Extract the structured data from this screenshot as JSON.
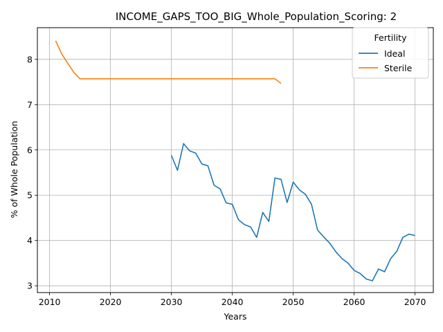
{
  "chart_data": {
    "type": "line",
    "title": "INCOME_GAPS_TOO_BIG_Whole_Population_Scoring: 2",
    "xlabel": "Years",
    "ylabel": "% of Whole Population",
    "xlim": [
      2008,
      2073
    ],
    "ylim": [
      2.85,
      8.7
    ],
    "xticks": [
      2010,
      2020,
      2030,
      2040,
      2050,
      2060,
      2070
    ],
    "yticks": [
      3,
      4,
      5,
      6,
      7,
      8
    ],
    "grid": true,
    "legend": {
      "title": "Fertility",
      "placement": "top-right"
    },
    "series": [
      {
        "name": "Ideal",
        "color": "#1f77b4",
        "x": [
          2030,
          2031,
          2032,
          2033,
          2034,
          2035,
          2036,
          2037,
          2038,
          2039,
          2040,
          2041,
          2042,
          2043,
          2044,
          2045,
          2046,
          2047,
          2048,
          2049,
          2050,
          2051,
          2052,
          2053,
          2054,
          2055,
          2056,
          2057,
          2058,
          2059,
          2060,
          2061,
          2062,
          2063,
          2064,
          2065,
          2066,
          2067,
          2068,
          2069,
          2070
        ],
        "y": [
          5.88,
          5.55,
          6.14,
          5.98,
          5.93,
          5.69,
          5.65,
          5.22,
          5.14,
          4.83,
          4.8,
          4.46,
          4.35,
          4.3,
          4.07,
          4.62,
          4.42,
          5.38,
          5.35,
          4.84,
          5.29,
          5.12,
          5.02,
          4.8,
          4.23,
          4.08,
          3.94,
          3.75,
          3.6,
          3.5,
          3.34,
          3.27,
          3.15,
          3.11,
          3.37,
          3.31,
          3.6,
          3.76,
          4.07,
          4.14,
          4.11
        ]
      },
      {
        "name": "Sterile",
        "color": "#ff7f0e",
        "x": [
          2011,
          2012,
          2013,
          2014,
          2015,
          2016,
          2017,
          2018,
          2019,
          2020,
          2021,
          2022,
          2023,
          2024,
          2025,
          2026,
          2027,
          2028,
          2029,
          2030,
          2031,
          2032,
          2033,
          2034,
          2035,
          2036,
          2037,
          2038,
          2039,
          2040,
          2041,
          2042,
          2043,
          2044,
          2045,
          2046,
          2047,
          2048
        ],
        "y": [
          8.41,
          8.12,
          7.91,
          7.71,
          7.57,
          7.57,
          7.57,
          7.57,
          7.57,
          7.57,
          7.57,
          7.57,
          7.57,
          7.57,
          7.57,
          7.57,
          7.57,
          7.57,
          7.57,
          7.57,
          7.57,
          7.57,
          7.57,
          7.57,
          7.57,
          7.57,
          7.57,
          7.57,
          7.57,
          7.57,
          7.57,
          7.57,
          7.57,
          7.57,
          7.57,
          7.57,
          7.57,
          7.47
        ]
      }
    ]
  }
}
